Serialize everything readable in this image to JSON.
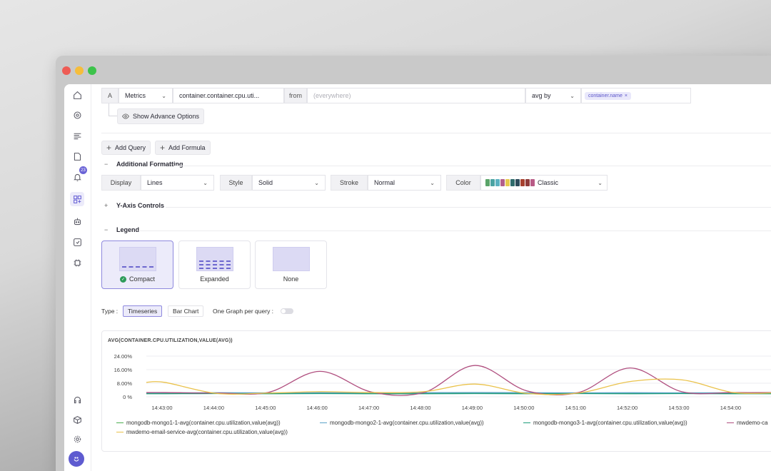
{
  "query": {
    "letter": "A",
    "source": "Metrics",
    "metric": "container.container.cpu.uti...",
    "from_label": "from",
    "from_placeholder": "(everywhere)",
    "agg": "avg by",
    "group_chip": "container.name",
    "advance_options": "Show Advance Options"
  },
  "actions": {
    "add_query": "Add Query",
    "add_formula": "Add Formula"
  },
  "formatting": {
    "title": "Additional Formatting",
    "display_label": "Display",
    "display_value": "Lines",
    "style_label": "Style",
    "style_value": "Solid",
    "stroke_label": "Stroke",
    "stroke_value": "Normal",
    "color_label": "Color",
    "color_value": "Classic",
    "palette": [
      "#5aa469",
      "#4aa3a2",
      "#5bb0c0",
      "#b25f8a",
      "#e6c94d",
      "#2f6b6b",
      "#2d4a5a",
      "#a6402e",
      "#8e3a3a",
      "#b85b86"
    ]
  },
  "yaxis": {
    "title": "Y-Axis Controls"
  },
  "legend": {
    "title": "Legend",
    "options": [
      "Compact",
      "Expanded",
      "None"
    ],
    "selected": "Compact"
  },
  "type": {
    "label": "Type :",
    "timeseries": "Timeseries",
    "bar_chart": "Bar Chart",
    "one_graph": "One Graph per query :"
  },
  "notifications": {
    "count": "23"
  },
  "chart_data": {
    "type": "line",
    "title": "AVG(CONTAINER.CPU.UTILIZATION,VALUE(AVG))",
    "y_ticks": [
      "24.00%",
      "16.00%",
      "8.00%",
      "0 %"
    ],
    "ylim": [
      0,
      24
    ],
    "x": [
      "14:43:00",
      "14:44:00",
      "14:45:00",
      "14:46:00",
      "14:47:00",
      "14:48:00",
      "14:49:00",
      "14:50:00",
      "14:51:00",
      "14:52:00",
      "14:53:00",
      "14:54:00"
    ],
    "series": [
      {
        "name": "mongodb-mongo1-1-avg(container.cpu.utilization,value(avg))",
        "color": "#4caf50",
        "values": [
          2.0,
          2.1,
          2.0,
          2.2,
          2.0,
          2.1,
          2.0,
          2.1,
          2.0,
          2.1,
          2.0,
          2.1
        ]
      },
      {
        "name": "mongodb-mongo2-1-avg(container.cpu.utilization,value(avg))",
        "color": "#5ba3c9",
        "values": [
          2.3,
          2.4,
          2.3,
          2.4,
          2.3,
          2.4,
          2.5,
          2.4,
          2.3,
          2.4,
          2.3,
          2.4
        ]
      },
      {
        "name": "mongodb-mongo3-1-avg(container.cpu.utilization,value(avg))",
        "color": "#1e9c7a",
        "values": [
          1.8,
          1.9,
          1.8,
          1.9,
          1.8,
          1.8,
          1.9,
          1.8,
          1.9,
          1.8,
          1.9,
          1.8
        ]
      },
      {
        "name": "mwdemo-ca",
        "color": "#b04f7f",
        "values": [
          2.5,
          2.2,
          2.6,
          15.0,
          2.8,
          2.4,
          18.5,
          3.5,
          2.5,
          17.0,
          3.0,
          2.5
        ]
      },
      {
        "name": "mwdemo-email-service-avg(container.cpu.utilization,value(avg))",
        "color": "#eac24a",
        "values": [
          8.5,
          2.0,
          2.2,
          3.0,
          2.5,
          3.0,
          7.5,
          2.0,
          2.2,
          9.0,
          10.0,
          2.5
        ]
      }
    ]
  }
}
